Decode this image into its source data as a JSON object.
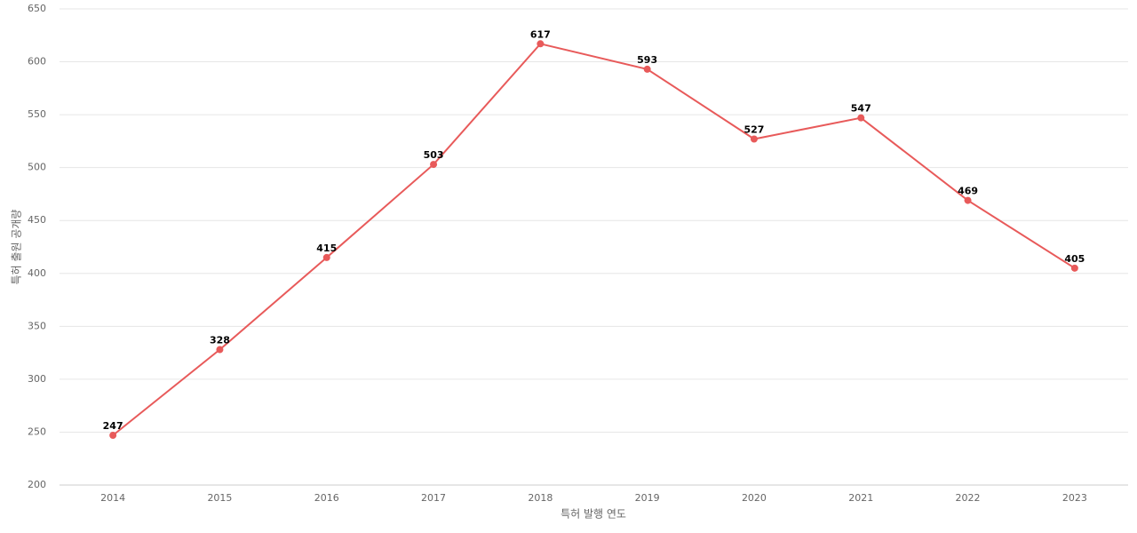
{
  "chart_data": {
    "type": "line",
    "x_label": "특허 발행 연도",
    "y_label": "특허 출원 공개량",
    "categories": [
      "2014",
      "2015",
      "2016",
      "2017",
      "2018",
      "2019",
      "2020",
      "2021",
      "2022",
      "2023"
    ],
    "series": [
      {
        "name": "특허 출원 공개량",
        "color": "#e85a5a",
        "values": [
          247,
          328,
          415,
          503,
          617,
          593,
          527,
          547,
          469,
          405
        ]
      }
    ],
    "ylim": [
      200,
      650
    ],
    "yticks": [
      200,
      250,
      300,
      350,
      400,
      450,
      500,
      550,
      600,
      650
    ],
    "grid": true
  }
}
